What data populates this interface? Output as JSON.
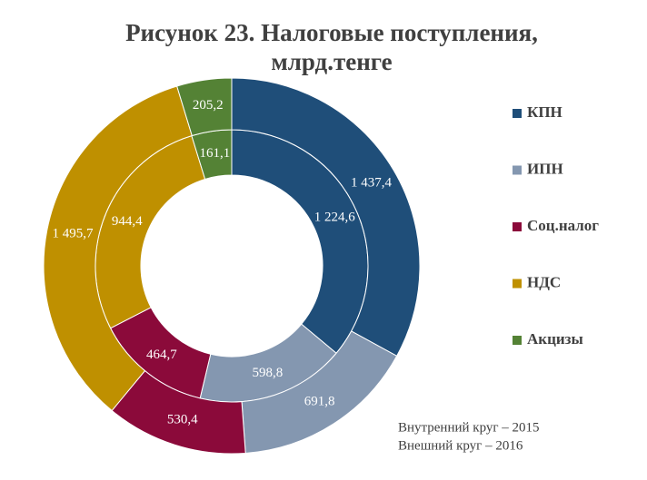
{
  "chart_data": {
    "type": "doughnut",
    "title": "Рисунок 23. Налоговые поступления, млрд.тенге",
    "categories": [
      "КПН",
      "ИПН",
      "Соц.налог",
      "НДС",
      "Акцизы"
    ],
    "colors": [
      "#1f4e79",
      "#8497b0",
      "#8b0a3a",
      "#bf9000",
      "#548235"
    ],
    "series": [
      {
        "name": "Внутренний круг – 2015",
        "values": [
          1224.6,
          598.8,
          464.7,
          944.4,
          161.1
        ],
        "value_labels": [
          "1 224,6",
          "598,8",
          "464,7",
          "944,4",
          "161,1"
        ]
      },
      {
        "name": "Внешний круг – 2016",
        "values": [
          1437.4,
          691.8,
          530.4,
          1495.7,
          205.2
        ],
        "value_labels": [
          "1 437,4",
          "691,8",
          "530,4",
          "1 495,7",
          "205,2"
        ]
      }
    ],
    "legend": "right"
  }
}
